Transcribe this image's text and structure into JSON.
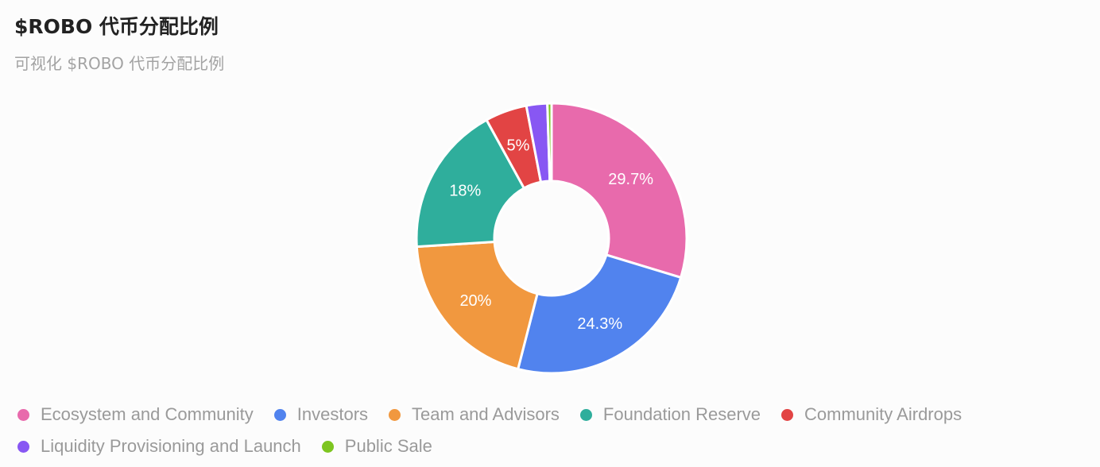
{
  "header": {
    "title": "$ROBO 代币分配比例",
    "subtitle": "可视化 $ROBO 代币分配比例"
  },
  "chart_data": {
    "type": "pie",
    "donut": true,
    "legend_position": "bottom",
    "categories": [
      "Ecosystem and Community",
      "Investors",
      "Team and Advisors",
      "Foundation Reserve",
      "Community Airdrops",
      "Liquidity Provisioning and Launch",
      "Public Sale"
    ],
    "values": [
      29.7,
      24.3,
      20,
      18,
      5,
      2.5,
      0.5
    ],
    "data_labels": [
      "29.7%",
      "24.3%",
      "20%",
      "18%",
      "5%",
      "",
      ""
    ],
    "colors": [
      "#e86aac",
      "#5183ee",
      "#f1983f",
      "#2fae9c",
      "#e24444",
      "#8857f3",
      "#7dc520"
    ]
  }
}
